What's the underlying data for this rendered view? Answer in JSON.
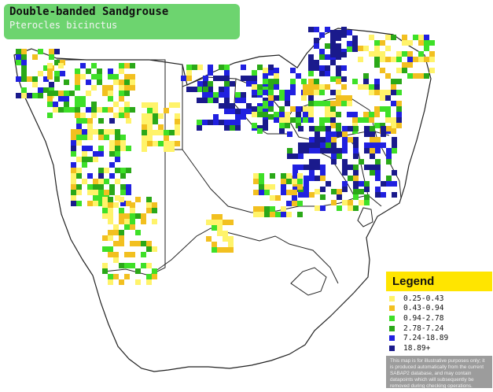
{
  "title": {
    "common_name": "Double-banded Sandgrouse",
    "scientific_name": "Pterocles bicinctus"
  },
  "legend": {
    "heading": "Legend",
    "ranges": [
      {
        "label": "0.25-0.43",
        "color": "#fff36a"
      },
      {
        "label": "0.43-0.94",
        "color": "#f2c020"
      },
      {
        "label": "0.94-2.78",
        "color": "#3ee028"
      },
      {
        "label": "2.78-7.24",
        "color": "#2aa818"
      },
      {
        "label": "7.24-18.89",
        "color": "#2020e0"
      },
      {
        "label": "18.89+",
        "color": "#1a1a8c"
      }
    ],
    "note": "This map is for illustrative purposes only; it is produced automatically from the current SABAP2 database, and may contain datapoints which will subsequently be removed during checking operations."
  },
  "map": {
    "land_color": "#ffffff",
    "sea_color": "#ffffff",
    "border_color": "#222222",
    "region": "Southern Africa"
  }
}
